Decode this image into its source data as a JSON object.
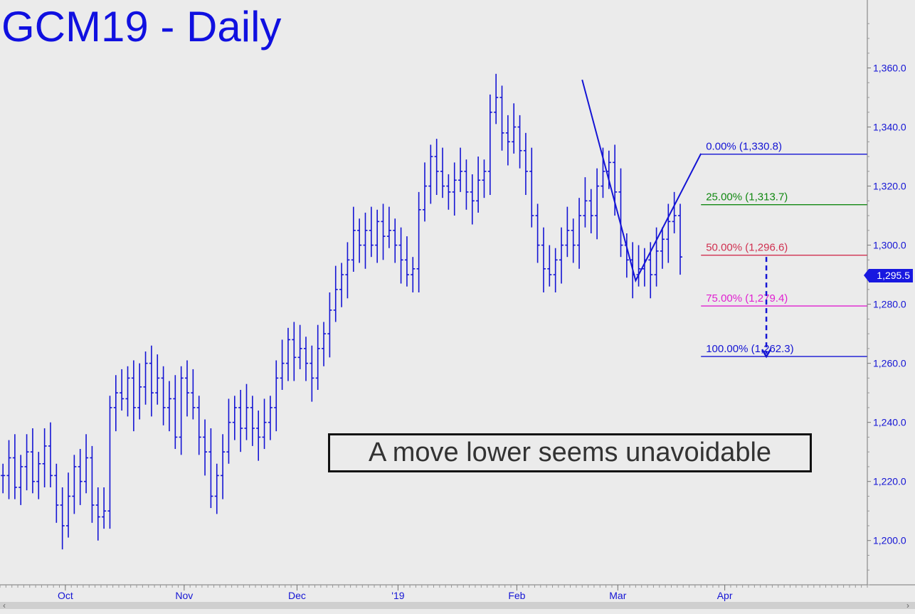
{
  "chart_data": {
    "type": "ohlc",
    "title": "GCM19 - Daily",
    "annotation": "A move lower seems unavoidable",
    "last_price_label": "1,295.5",
    "last_price": 1295.5,
    "ylim": [
      1185,
      1383
    ],
    "y_ticks": [
      1200,
      1220,
      1240,
      1260,
      1280,
      1300,
      1320,
      1340,
      1360
    ],
    "y_tick_labels": [
      "1,200.0",
      "1,220.0",
      "1,240.0",
      "1,260.0",
      "1,280.0",
      "1,300.0",
      "1,320.0",
      "1,340.0",
      "1,360.0"
    ],
    "x_range": [
      0,
      146
    ],
    "x_ticks": [
      {
        "label": "Oct",
        "x": 11
      },
      {
        "label": "Nov",
        "x": 31
      },
      {
        "label": "Dec",
        "x": 50
      },
      {
        "label": "'19",
        "x": 67
      },
      {
        "label": "Feb",
        "x": 87
      },
      {
        "label": "Mar",
        "x": 104
      },
      {
        "label": "Apr",
        "x": 122
      }
    ],
    "fib_levels": [
      {
        "label": "0.00% (1,330.8)",
        "value": 1330.8,
        "color": "#1414d4"
      },
      {
        "label": "25.00% (1,313.7)",
        "value": 1313.7,
        "color": "#118811"
      },
      {
        "label": "50.00% (1,296.6)",
        "value": 1296.6,
        "color": "#d03050"
      },
      {
        "label": "75.00% (1,279.4)",
        "value": 1279.4,
        "color": "#e020d0"
      },
      {
        "label": "100.00% (1,262.3)",
        "value": 1262.3,
        "color": "#1414d4"
      }
    ],
    "fib_start_x": 118,
    "pattern_points": [
      {
        "x": 98,
        "y": 1356
      },
      {
        "x": 107,
        "y": 1288
      },
      {
        "x": 118,
        "y": 1331
      }
    ],
    "projection_arrow": {
      "x": 129,
      "from": 1296,
      "to": 1262.3
    },
    "closes": [
      1222,
      1228,
      1218,
      1225,
      1230,
      1220,
      1226,
      1232,
      1222,
      1212,
      1205,
      1215,
      1225,
      1220,
      1228,
      1212,
      1208,
      1210,
      1245,
      1250,
      1248,
      1255,
      1245,
      1252,
      1260,
      1250,
      1255,
      1245,
      1248,
      1235,
      1255,
      1250,
      1245,
      1235,
      1230,
      1215,
      1222,
      1230,
      1240,
      1245,
      1238,
      1245,
      1238,
      1235,
      1240,
      1245,
      1255,
      1260,
      1268,
      1262,
      1265,
      1260,
      1255,
      1265,
      1270,
      1278,
      1285,
      1290,
      1295,
      1305,
      1300,
      1305,
      1300,
      1308,
      1303,
      1305,
      1300,
      1295,
      1290,
      1292,
      1312,
      1320,
      1330,
      1325,
      1320,
      1318,
      1322,
      1325,
      1318,
      1315,
      1322,
      1325,
      1345,
      1350,
      1338,
      1335,
      1340,
      1332,
      1325,
      1310,
      1300,
      1292,
      1290,
      1295,
      1300,
      1305,
      1300,
      1310,
      1315,
      1310,
      1320,
      1325,
      1328,
      1318,
      1300,
      1295,
      1290,
      1292,
      1295,
      1290,
      1298,
      1302,
      1308,
      1310,
      1296
    ]
  }
}
